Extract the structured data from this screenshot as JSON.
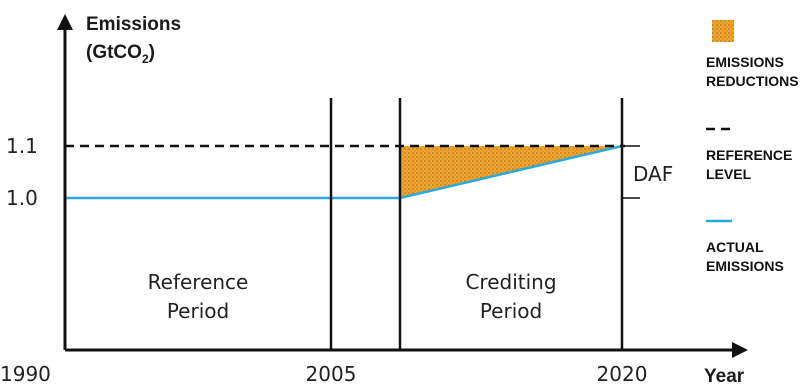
{
  "diagram": {
    "y_axis_title_line1": "Emissions",
    "y_axis_title_line2_prefix": "(GtCO",
    "y_axis_title_line2_sub": "2",
    "y_axis_title_line2_suffix": ")",
    "x_axis_title": "Year",
    "y_ticks": [
      "1.1",
      "1.0"
    ],
    "x_ticks": [
      "1990",
      "2005",
      "2020"
    ],
    "periods": {
      "reference": [
        "Reference",
        "Period"
      ],
      "crediting": [
        "Crediting",
        "Period"
      ]
    },
    "daf_label": "DAF",
    "reference_level": 1.1,
    "actual_start_level": 1.0,
    "actual_end_level": 1.1,
    "colors": {
      "reductions": "#f2a630",
      "actual_line": "#29abe2",
      "axes": "#111111"
    }
  },
  "legend": {
    "reductions": [
      "EMISSIONS",
      "REDUCTIONS"
    ],
    "reference": [
      "REFERENCE",
      "LEVEL"
    ],
    "actual": [
      "ACTUAL",
      "EMISSIONS"
    ]
  }
}
